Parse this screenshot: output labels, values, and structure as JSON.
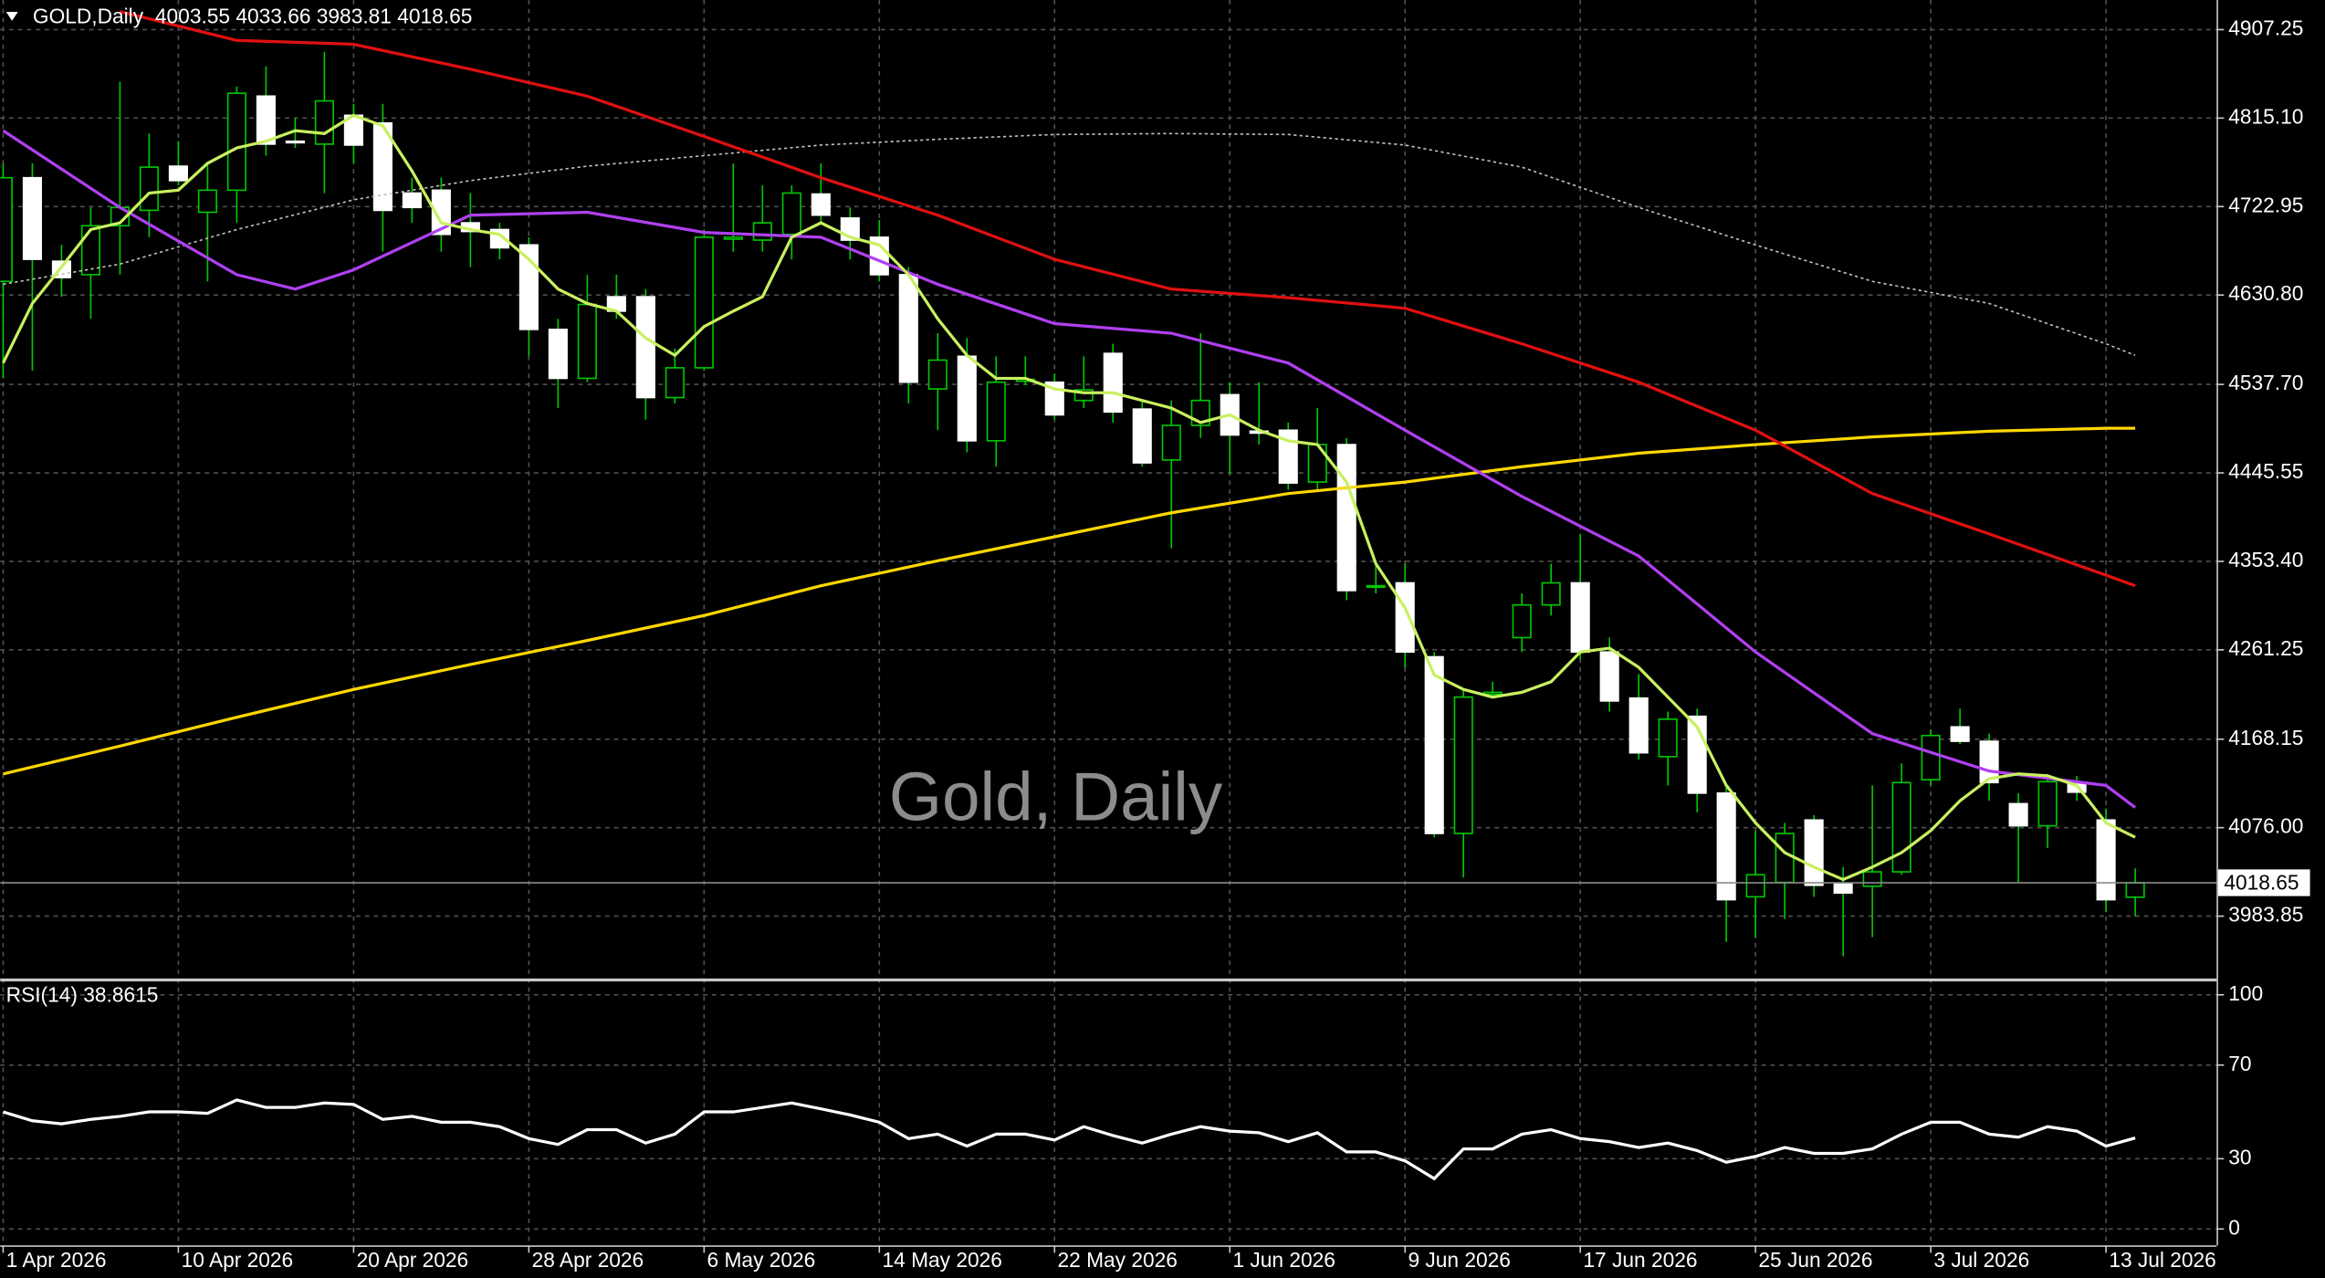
{
  "chart_data": [
    {
      "type": "candlestick",
      "title": "GOLD,Daily",
      "watermark": "Gold, Daily",
      "categories": [
        "1 Apr 2026",
        null,
        null,
        null,
        null,
        null,
        "10 Apr 2026",
        null,
        null,
        null,
        null,
        null,
        "20 Apr 2026",
        null,
        null,
        null,
        null,
        null,
        "28 Apr 2026",
        null,
        null,
        null,
        null,
        null,
        "6 May 2026",
        null,
        null,
        null,
        null,
        null,
        "14 May 2026",
        null,
        null,
        null,
        null,
        null,
        "22 May 2026",
        null,
        null,
        null,
        null,
        null,
        "1 Jun 2026",
        null,
        null,
        null,
        null,
        null,
        "9 Jun 2026",
        null,
        null,
        null,
        null,
        null,
        "17 Jun 2026",
        null,
        null,
        null,
        null,
        null,
        "25 Jun 2026",
        null,
        null,
        null,
        null,
        null,
        "3 Jul 2026",
        null,
        null,
        null,
        null,
        null,
        "13 Jul 2026",
        null
      ],
      "open": [
        4645,
        4753,
        4666,
        4652,
        4703,
        4719,
        4765,
        4717,
        4740,
        4838,
        4791,
        4788,
        4818,
        4810,
        4737,
        4740,
        4706,
        4699,
        4683,
        4595,
        4544,
        4629,
        4629,
        4524,
        4555,
        4689,
        4688,
        4694,
        4736,
        4711,
        4691,
        4652,
        4533,
        4567,
        4479,
        4541,
        4540,
        4521,
        4570,
        4512,
        4459,
        4495,
        4527,
        4489,
        4490,
        4436,
        4475,
        4327,
        4331,
        4254,
        4070,
        4215,
        4274,
        4308,
        4331,
        4259,
        4211,
        4150,
        4192,
        4112,
        4004,
        4019,
        4084,
        4018,
        4015,
        4030,
        4126,
        4181,
        4166,
        4101,
        4078,
        4123,
        4084,
        4003.55
      ],
      "high": [
        4768,
        4768,
        4683,
        4722,
        4853,
        4799,
        4791,
        4768,
        4848,
        4869,
        4815,
        4884,
        4830,
        4830,
        4753,
        4753,
        4737,
        4706,
        4691,
        4606,
        4652,
        4652,
        4637,
        4575,
        4699,
        4768,
        4745,
        4745,
        4768,
        4722,
        4709,
        4660,
        4591,
        4586,
        4567,
        4567,
        4549,
        4567,
        4580,
        4521,
        4521,
        4591,
        4540,
        4540,
        4498,
        4513,
        4482,
        4351,
        4351,
        4259,
        4220,
        4228,
        4320,
        4351,
        4382,
        4274,
        4236,
        4197,
        4200,
        4120,
        4073,
        4081,
        4089,
        4035,
        4120,
        4143,
        4178,
        4200,
        4174,
        4112,
        4132,
        4130,
        4096,
        4033.66
      ],
      "low": [
        4544,
        4552,
        4629,
        4606,
        4652,
        4691,
        4745,
        4645,
        4706,
        4776,
        4784,
        4737,
        4768,
        4676,
        4706,
        4676,
        4660,
        4668,
        4567,
        4513,
        4540,
        4606,
        4501,
        4518,
        4552,
        4676,
        4676,
        4668,
        4706,
        4668,
        4645,
        4518,
        4490,
        4467,
        4452,
        4537,
        4501,
        4513,
        4498,
        4452,
        4367,
        4482,
        4444,
        4475,
        4428,
        4428,
        4313,
        4320,
        4243,
        4066,
        4024,
        4212,
        4259,
        4297,
        4251,
        4197,
        4147,
        4120,
        4092,
        3957,
        3962,
        3981,
        4004,
        3942,
        3962,
        4027,
        4120,
        4163,
        4104,
        4019,
        4055,
        4104,
        3988,
        3983.81
      ],
      "close": [
        4753,
        4668,
        4649,
        4703,
        4722,
        4764,
        4750,
        4740,
        4841,
        4788,
        4790,
        4833,
        4787,
        4719,
        4722,
        4694,
        4697,
        4680,
        4595,
        4544,
        4621,
        4614,
        4524,
        4555,
        4691,
        4691,
        4706,
        4737,
        4714,
        4688,
        4652,
        4540,
        4563,
        4479,
        4540,
        4543,
        4506,
        4532,
        4509,
        4456,
        4495,
        4521,
        4485,
        4487,
        4435,
        4475,
        4323,
        4328,
        4259,
        4070,
        4212,
        4217,
        4308,
        4331,
        4259,
        4208,
        4154,
        4189,
        4112,
        4001,
        4027,
        4070,
        4016,
        4008,
        4030,
        4123,
        4172,
        4166,
        4123,
        4078,
        4124,
        4113,
        4001,
        4018.65
      ],
      "bull_color": "#000000",
      "bear_color": "#ffffff",
      "wick_color": "#00c800",
      "series": [
        {
          "color": "#c0c0c0",
          "dash": true,
          "x": [
            0,
            4,
            8,
            12,
            16,
            20,
            24,
            28,
            32,
            36,
            40,
            44,
            48,
            52,
            56,
            60,
            64,
            68,
            72,
            73
          ],
          "values": [
            4642,
            4663,
            4699,
            4730,
            4750,
            4765,
            4776,
            4787,
            4793,
            4798,
            4799,
            4798,
            4787,
            4764,
            4722,
            4683,
            4645,
            4622,
            4580,
            4568
          ]
        },
        {
          "color": "#ffd700",
          "x": [
            0,
            4,
            8,
            12,
            16,
            20,
            24,
            28,
            32,
            36,
            40,
            44,
            48,
            52,
            56,
            60,
            64,
            68,
            72,
            73
          ],
          "values": [
            4132,
            4161,
            4191,
            4220,
            4246,
            4271,
            4297,
            4328,
            4354,
            4379,
            4404,
            4424,
            4436,
            4452,
            4466,
            4475,
            4483,
            4489,
            4492,
            4492
          ]
        },
        {
          "color": "#e01010",
          "x": [
            4,
            8,
            12,
            16,
            20,
            24,
            28,
            32,
            36,
            40,
            44,
            48,
            52,
            56,
            60,
            64,
            68,
            72,
            73
          ],
          "values": [
            4926,
            4896,
            4892,
            4866,
            4838,
            4796,
            4753,
            4714,
            4668,
            4637,
            4628,
            4617,
            4580,
            4540,
            4490,
            4424,
            4382,
            4339,
            4328
          ]
        },
        {
          "color": "#b040f0",
          "x": [
            0,
            4,
            8,
            10,
            12,
            16,
            20,
            24,
            28,
            32,
            36,
            40,
            44,
            48,
            52,
            56,
            60,
            64,
            68,
            72,
            73
          ],
          "values": [
            4802,
            4722,
            4652,
            4637,
            4657,
            4714,
            4717,
            4696,
            4691,
            4642,
            4601,
            4591,
            4560,
            4490,
            4421,
            4359,
            4259,
            4174,
            4135,
            4120,
            4097
          ]
        },
        {
          "color": "#c8f060",
          "values": [
            4560,
            4622,
            4660,
            4699,
            4706,
            4737,
            4740,
            4768,
            4784,
            4791,
            4802,
            4799,
            4818,
            4807,
            4760,
            4706,
            4699,
            4694,
            4668,
            4637,
            4622,
            4614,
            4586,
            4568,
            4598,
            4614,
            4629,
            4691,
            4706,
            4691,
            4683,
            4652,
            4606,
            4568,
            4544,
            4544,
            4533,
            4529,
            4529,
            4521,
            4513,
            4498,
            4506,
            4490,
            4479,
            4475,
            4436,
            4351,
            4305,
            4235,
            4220,
            4212,
            4217,
            4228,
            4259,
            4263,
            4243,
            4212,
            4181,
            4120,
            4081,
            4050,
            4035,
            4022,
            4035,
            4050,
            4073,
            4104,
            4127,
            4132,
            4130,
            4120,
            4081,
            4066
          ]
        }
      ],
      "ylim": [
        3918.9,
        4938.1
      ],
      "yticks": [
        4907.25,
        {
          "value": 4815.1,
          "label": "4815.10"
        },
        4722.95,
        {
          "value": 4630.8,
          "label": "4630.80"
        },
        {
          "value": 4537.7,
          "label": "4537.70"
        },
        4445.55,
        {
          "value": 4353.4,
          "label": "4353.40"
        },
        4261.25,
        4168.15,
        {
          "value": 4076,
          "label": "4076.00"
        },
        3983.85
      ],
      "grid": true
    },
    {
      "type": "line",
      "title": "RSI(14)",
      "color": "#ffffff",
      "values": [
        50.0,
        46.2,
        44.9,
        46.8,
        48.1,
        50.0,
        50.0,
        49.4,
        55.1,
        51.9,
        51.9,
        53.8,
        53.2,
        46.8,
        48.1,
        45.6,
        45.6,
        43.7,
        38.6,
        36.1,
        42.4,
        42.4,
        36.7,
        40.5,
        50.0,
        50.0,
        51.9,
        53.8,
        51.3,
        48.7,
        45.6,
        38.6,
        40.5,
        35.4,
        40.5,
        40.5,
        38.0,
        43.7,
        39.9,
        36.7,
        40.5,
        43.7,
        41.8,
        41.1,
        37.3,
        41.1,
        32.9,
        32.9,
        29.1,
        21.5,
        34.2,
        34.2,
        40.5,
        42.4,
        38.6,
        37.3,
        34.8,
        36.7,
        33.5,
        28.5,
        31.0,
        34.8,
        32.3,
        32.3,
        34.2,
        40.5,
        45.6,
        45.6,
        40.5,
        39.2,
        43.7,
        41.8,
        35.4,
        38.8615
      ],
      "ylim": [
        -7,
        105.7
      ],
      "yticks": [
        100,
        70,
        30,
        0
      ],
      "grid": true
    }
  ]
}
